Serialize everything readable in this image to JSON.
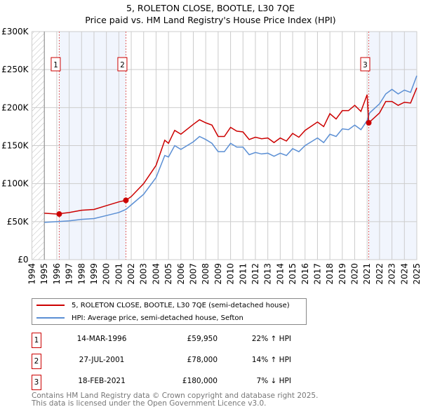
{
  "chart_data": {
    "type": "line",
    "title": "5, ROLETON CLOSE, BOOTLE, L30 7QE",
    "subtitle": "Price paid vs. HM Land Registry's House Price Index (HPI)",
    "xlim": [
      1994,
      2025
    ],
    "ylim": [
      0,
      300000
    ],
    "y_ticks": [
      "£0",
      "£50K",
      "£100K",
      "£150K",
      "£200K",
      "£250K",
      "£300K"
    ],
    "y_tick_values": [
      0,
      50000,
      100000,
      150000,
      200000,
      250000,
      300000
    ],
    "x_ticks": [
      "1994",
      "1995",
      "1996",
      "1997",
      "1998",
      "1999",
      "2000",
      "2001",
      "2002",
      "2003",
      "2004",
      "2005",
      "2006",
      "2007",
      "2008",
      "2009",
      "2010",
      "2011",
      "2012",
      "2013",
      "2014",
      "2015",
      "2016",
      "2017",
      "2018",
      "2019",
      "2020",
      "2021",
      "2022",
      "2023",
      "2024",
      "2025"
    ],
    "grid": true,
    "legend_placement": "bottom",
    "series": [
      {
        "name": "5, ROLETON CLOSE, BOOTLE, L30 7QE (semi-detached house)",
        "color": "#cc0000",
        "x": [
          1995,
          1996,
          1997,
          1998,
          1999,
          2000,
          2001,
          2001.57,
          2002,
          2003,
          2004,
          2004.7,
          2005,
          2005.5,
          2006,
          2007,
          2007.5,
          2008,
          2008.5,
          2009,
          2009.5,
          2010,
          2010.5,
          2011,
          2011.5,
          2012,
          2012.5,
          2013,
          2013.5,
          2014,
          2014.5,
          2015,
          2015.5,
          2016,
          2017,
          2017.5,
          2018,
          2018.5,
          2019,
          2019.5,
          2020,
          2020.5,
          2021.0,
          2021.13,
          2022,
          2022.5,
          2023,
          2023.5,
          2024,
          2024.5,
          2025
        ],
        "y": [
          61000,
          60000,
          62000,
          65000,
          66000,
          71000,
          76000,
          78000,
          83000,
          100000,
          124000,
          157000,
          153000,
          170000,
          165000,
          178000,
          184000,
          180000,
          177000,
          162000,
          162000,
          174000,
          169000,
          168000,
          158000,
          161000,
          159000,
          160000,
          154000,
          160000,
          156000,
          166000,
          161000,
          170000,
          181000,
          175000,
          192000,
          185000,
          196000,
          196000,
          203000,
          195000,
          217000,
          180000,
          193000,
          208000,
          208000,
          203000,
          207000,
          206000,
          226000
        ]
      },
      {
        "name": "HPI: Average price, semi-detached house, Sefton",
        "color": "#5b8fd4",
        "x": [
          1995,
          1996,
          1997,
          1998,
          1999,
          2000,
          2001,
          2001.57,
          2002,
          2003,
          2004,
          2004.7,
          2005,
          2005.5,
          2006,
          2007,
          2007.5,
          2008,
          2008.5,
          2009,
          2009.5,
          2010,
          2010.5,
          2011,
          2011.5,
          2012,
          2012.5,
          2013,
          2013.5,
          2014,
          2014.5,
          2015,
          2015.5,
          2016,
          2017,
          2017.5,
          2018,
          2018.5,
          2019,
          2019.5,
          2020,
          2020.5,
          2021.0,
          2021.2,
          2022,
          2022.5,
          2023,
          2023.5,
          2024,
          2024.5,
          2025
        ],
        "y": [
          49000,
          50000,
          51000,
          53000,
          54000,
          58000,
          62000,
          66000,
          72000,
          86000,
          108000,
          137000,
          135000,
          150000,
          145000,
          155000,
          162000,
          158000,
          153000,
          142000,
          142000,
          153000,
          148000,
          148000,
          138000,
          141000,
          139000,
          140000,
          136000,
          140000,
          137000,
          146000,
          142000,
          150000,
          160000,
          154000,
          165000,
          162000,
          172000,
          171000,
          177000,
          171000,
          183000,
          193000,
          205000,
          218000,
          224000,
          218000,
          223000,
          220000,
          242000
        ]
      }
    ],
    "sales": [
      {
        "label": "1",
        "x": 1996.2,
        "y": 59950,
        "date": "14-MAR-1996",
        "price": "£59,950",
        "hpi": "22% ↑ HPI"
      },
      {
        "label": "2",
        "x": 2001.57,
        "y": 78000,
        "date": "27-JUL-2001",
        "price": "£78,000",
        "hpi": "14% ↑ HPI"
      },
      {
        "label": "3",
        "x": 2021.13,
        "y": 180000,
        "date": "18-FEB-2021",
        "price": "£180,000",
        "hpi": "7% ↓ HPI"
      }
    ]
  },
  "footer": {
    "line1": "Contains HM Land Registry data © Crown copyright and database right 2025.",
    "line2": "This data is licensed under the Open Government Licence v3.0."
  }
}
